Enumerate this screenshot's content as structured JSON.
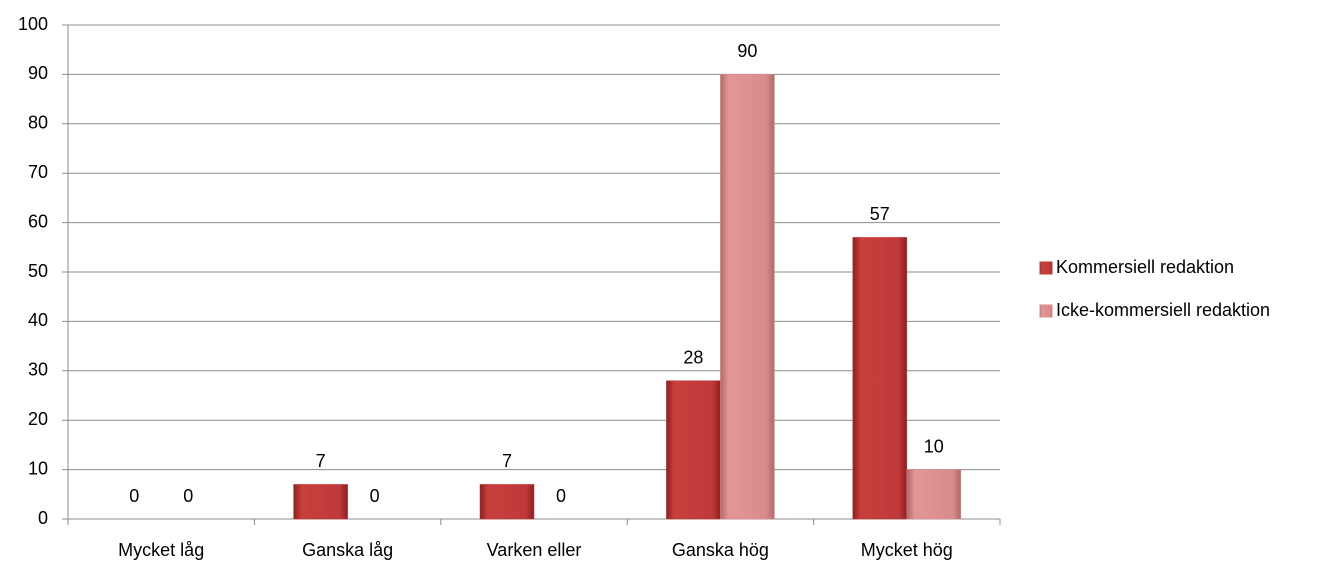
{
  "chart_data": {
    "type": "bar",
    "categories": [
      "Mycket låg",
      "Ganska låg",
      "Varken eller",
      "Ganska hög",
      "Mycket hög"
    ],
    "series": [
      {
        "name": "Kommersiell redaktion",
        "color": "#c0393a",
        "values": [
          0,
          7,
          7,
          28,
          57
        ]
      },
      {
        "name": "Icke-kommersiell redaktion",
        "color": "#d98b8b",
        "values": [
          0,
          0,
          0,
          90,
          10
        ]
      }
    ],
    "ylim": [
      0,
      100
    ],
    "yticks": [
      0,
      10,
      20,
      30,
      40,
      50,
      60,
      70,
      80,
      90,
      100
    ],
    "grid": true,
    "legend": "right"
  }
}
